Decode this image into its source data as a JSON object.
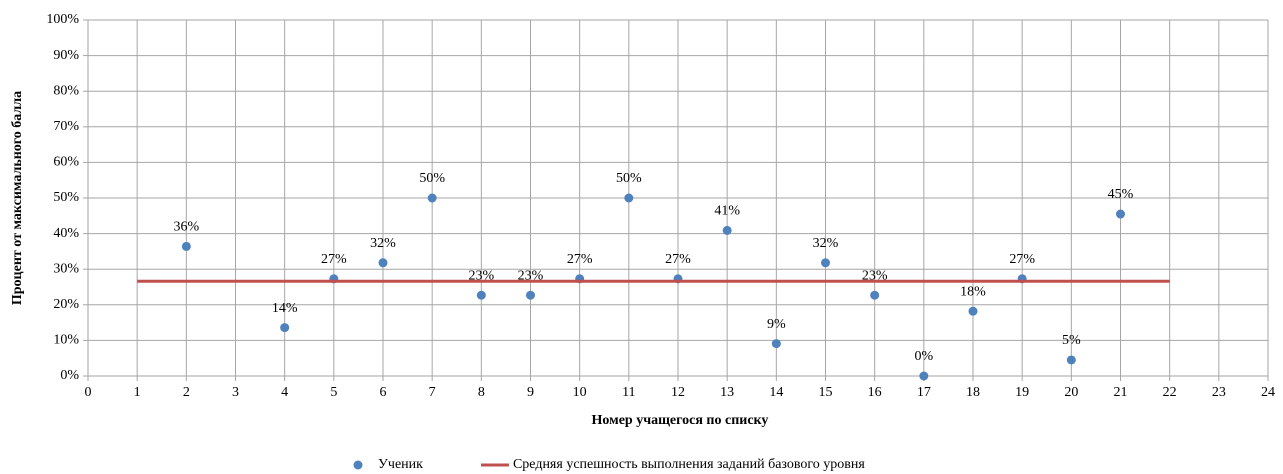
{
  "chart_data": {
    "type": "scatter",
    "y_label": "Процент от максимального балла",
    "x_label": "Номер учащегося по списку",
    "xlim": [
      0,
      24
    ],
    "xticks": [
      0,
      1,
      2,
      3,
      4,
      5,
      6,
      7,
      8,
      9,
      10,
      11,
      12,
      13,
      14,
      15,
      16,
      17,
      18,
      19,
      20,
      21,
      22,
      23,
      24
    ],
    "ylim": [
      0,
      100
    ],
    "yticks": [
      {
        "value": 0,
        "label": "0%"
      },
      {
        "value": 10,
        "label": "10%"
      },
      {
        "value": 20,
        "label": "20%"
      },
      {
        "value": 30,
        "label": "30%"
      },
      {
        "value": 40,
        "label": "40%"
      },
      {
        "value": 50,
        "label": "50%"
      },
      {
        "value": 60,
        "label": "60%"
      },
      {
        "value": 70,
        "label": "70%"
      },
      {
        "value": 80,
        "label": "80%"
      },
      {
        "value": 90,
        "label": "90%"
      },
      {
        "value": 100,
        "label": "100%"
      }
    ],
    "grid": true,
    "legend": "bottom",
    "series": [
      {
        "name": "Ученик",
        "type": "scatter",
        "color": "#4f81bd",
        "x": [
          2,
          4,
          5,
          6,
          7,
          8,
          9,
          10,
          11,
          12,
          13,
          14,
          15,
          16,
          17,
          18,
          19,
          20,
          21
        ],
        "values": [
          36.4,
          13.6,
          27.3,
          31.8,
          50,
          22.7,
          22.7,
          27.3,
          50,
          27.3,
          40.9,
          9.1,
          31.8,
          22.7,
          0,
          18.2,
          27.3,
          4.5,
          45.5
        ],
        "value_labels": [
          "36%",
          "14%",
          "27%",
          "32%",
          "50%",
          "23%",
          "23%",
          "27%",
          "50%",
          "27%",
          "41%",
          "9%",
          "32%",
          "23%",
          "0%",
          "18%",
          "27%",
          "5%",
          "45%"
        ]
      },
      {
        "name": "Средняя успешность выполнения заданий базового уровня",
        "type": "line",
        "color": "#c0504d",
        "x": [
          1,
          22
        ],
        "values": [
          26.6,
          26.6
        ]
      }
    ]
  }
}
